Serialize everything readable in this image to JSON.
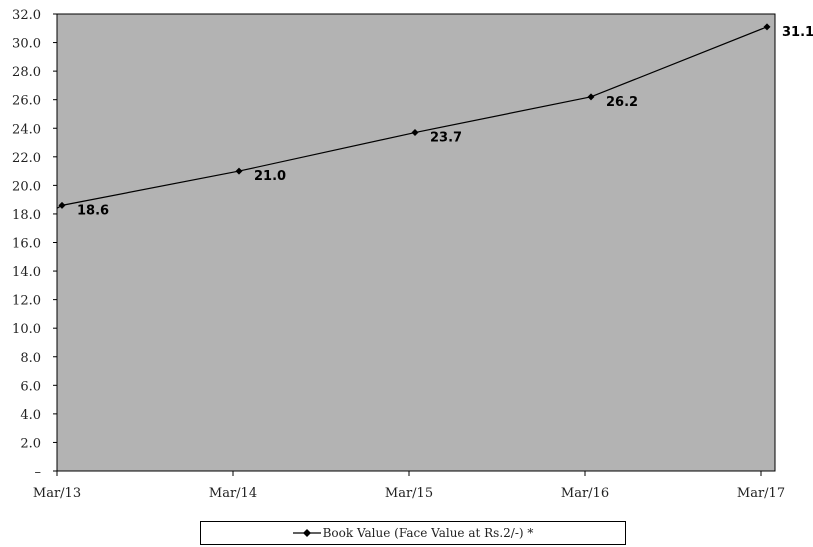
{
  "chart_data": {
    "type": "line",
    "categories": [
      "Mar/13",
      "Mar/14",
      "Mar/15",
      "Mar/16",
      "Mar/17"
    ],
    "series": [
      {
        "name": "Book Value (Face Value at Rs.2/-) *",
        "values": [
          18.6,
          21.0,
          23.7,
          26.2,
          31.1
        ]
      }
    ],
    "data_labels": [
      "18.6",
      "21.0",
      "23.7",
      "26.2",
      "31.1"
    ],
    "ylim": [
      0,
      32
    ],
    "y_ticks": [
      0,
      2,
      4,
      6,
      8,
      10,
      12,
      14,
      16,
      18,
      20,
      22,
      24,
      26,
      28,
      30,
      32
    ],
    "y_tick_labels": [
      "–",
      "2.0",
      "4.0",
      "6.0",
      "8.0",
      "10.0",
      "12.0",
      "14.0",
      "16.0",
      "18.0",
      "20.0",
      "22.0",
      "24.0",
      "26.0",
      "28.0",
      "30.0",
      "32.0"
    ],
    "title": "",
    "xlabel": "",
    "ylabel": "",
    "grid": false,
    "legend_position": "bottom",
    "plot_background": "#b3b3b3",
    "line_color": "#000000"
  }
}
